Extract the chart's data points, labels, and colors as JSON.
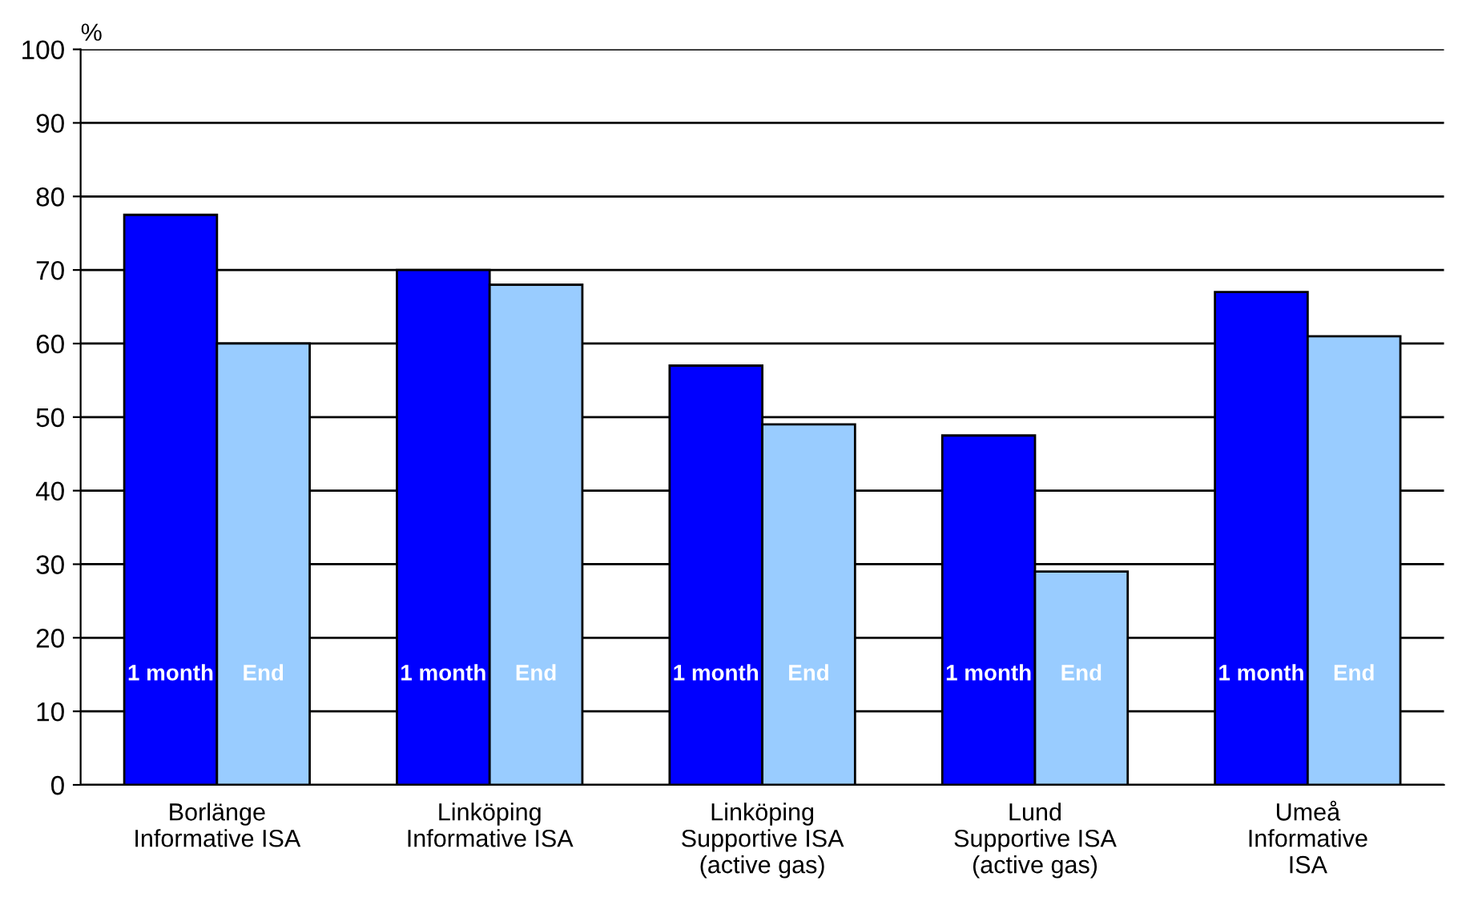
{
  "chart_data": {
    "type": "bar",
    "ylabel": "%",
    "categories": [
      "Borlänge\nInformative ISA",
      "Linköping\nInformative ISA",
      "Linköping\nSupportive ISA\n(active gas)",
      "Lund\nSupportive ISA\n(active gas)",
      "Umeå\nInformative\nISA"
    ],
    "series": [
      {
        "name": "1 month",
        "color": "#0000ff",
        "values": [
          77.5,
          70,
          57,
          47.5,
          67
        ]
      },
      {
        "name": "End",
        "color": "#99ccff",
        "values": [
          60,
          68,
          49,
          29,
          61
        ]
      }
    ],
    "ylim": [
      0,
      100
    ],
    "yticks": [
      0,
      10,
      20,
      30,
      40,
      50,
      60,
      70,
      80,
      90,
      100
    ],
    "grid": "y",
    "legend": false
  }
}
